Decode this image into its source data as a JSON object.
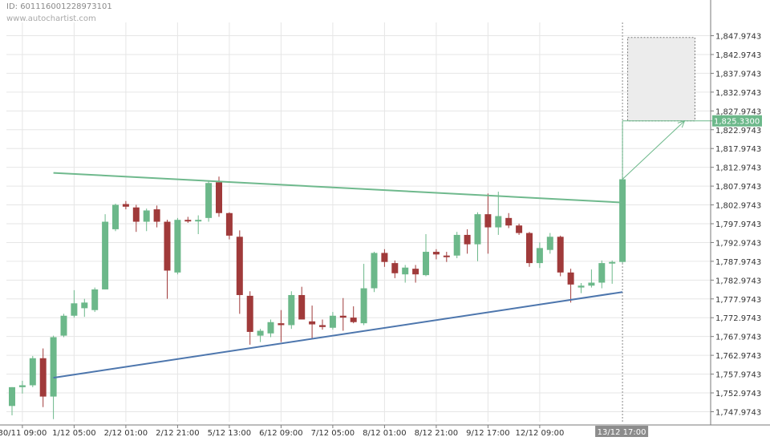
{
  "header": {
    "id_label": "ID: 601116001228973101",
    "watermark": "www.autochartist.com"
  },
  "colors": {
    "bull": "#6cb88a",
    "bear": "#a03a3a",
    "resistance": "#6fb98d",
    "support": "#4d76ad",
    "grid": "#e6e6e6",
    "axis": "#7a7a7a",
    "target_label_bg": "#6cb88a",
    "time_label_bg": "#8c8c8c",
    "forecast_fill": "#ececec"
  },
  "chart_data": {
    "type": "candlestick",
    "pattern": "triangle breakout",
    "y_ticks": [
      "1,747.9743",
      "1,752.9743",
      "1,757.9743",
      "1,762.9743",
      "1,767.9743",
      "1,772.9743",
      "1,777.9743",
      "1,782.9743",
      "1,787.9743",
      "1,792.9743",
      "1,797.9743",
      "1,802.9743",
      "1,807.9743",
      "1,812.9743",
      "1,817.9743",
      "1,822.9743",
      "1,827.9743",
      "1,832.9743",
      "1,837.9743",
      "1,842.9743",
      "1,847.9743"
    ],
    "y_tick_values": [
      1747.9743,
      1752.9743,
      1757.9743,
      1762.9743,
      1767.9743,
      1772.9743,
      1777.9743,
      1782.9743,
      1787.9743,
      1792.9743,
      1797.9743,
      1802.9743,
      1807.9743,
      1812.9743,
      1817.9743,
      1822.9743,
      1827.9743,
      1832.9743,
      1837.9743,
      1842.9743,
      1847.9743
    ],
    "ylim": [
      1745.3,
      1851.5
    ],
    "x_ticks": [
      {
        "bar": 1,
        "label": "30/11 09:00"
      },
      {
        "bar": 6,
        "label": "1/12 05:00"
      },
      {
        "bar": 11,
        "label": "2/12 01:00"
      },
      {
        "bar": 16,
        "label": "2/12 21:00"
      },
      {
        "bar": 21,
        "label": "5/12 13:00"
      },
      {
        "bar": 26,
        "label": "6/12 09:00"
      },
      {
        "bar": 31,
        "label": "7/12 05:00"
      },
      {
        "bar": 36,
        "label": "8/12 01:00"
      },
      {
        "bar": 41,
        "label": "8/12 21:00"
      },
      {
        "bar": 46,
        "label": "9/12 17:00"
      },
      {
        "bar": 51,
        "label": "12/12 09:00"
      }
    ],
    "current_time_label": "13/12 17:00",
    "current_time_bar": 59,
    "target_price_label": "1,825.3300",
    "target_price": 1825.33,
    "forecast_zone": {
      "start_bar": 59.5,
      "end_bar": 66,
      "low": 1825.33,
      "high": 1847.5
    },
    "candles": [
      {
        "o": 1749.5,
        "h": 1754.5,
        "l": 1747.0,
        "c": 1754.5
      },
      {
        "o": 1754.5,
        "h": 1756.2,
        "l": 1752.8,
        "c": 1755.0
      },
      {
        "o": 1755.0,
        "h": 1762.8,
        "l": 1754.5,
        "c": 1762.2
      },
      {
        "o": 1762.2,
        "h": 1764.8,
        "l": 1749.2,
        "c": 1752.0
      },
      {
        "o": 1752.0,
        "h": 1768.2,
        "l": 1746.0,
        "c": 1767.8
      },
      {
        "o": 1768.2,
        "h": 1774.0,
        "l": 1767.8,
        "c": 1773.5
      },
      {
        "o": 1773.5,
        "h": 1780.3,
        "l": 1773.0,
        "c": 1776.8
      },
      {
        "o": 1775.5,
        "h": 1778.0,
        "l": 1773.2,
        "c": 1777.0
      },
      {
        "o": 1775.0,
        "h": 1781.0,
        "l": 1774.5,
        "c": 1780.5
      },
      {
        "o": 1780.5,
        "h": 1800.5,
        "l": 1780.5,
        "c": 1798.5
      },
      {
        "o": 1796.5,
        "h": 1803.3,
        "l": 1796.0,
        "c": 1803.0
      },
      {
        "o": 1803.2,
        "h": 1804.0,
        "l": 1801.8,
        "c": 1802.5
      },
      {
        "o": 1802.3,
        "h": 1803.0,
        "l": 1795.8,
        "c": 1798.5
      },
      {
        "o": 1798.5,
        "h": 1802.0,
        "l": 1796.0,
        "c": 1801.5
      },
      {
        "o": 1801.8,
        "h": 1802.8,
        "l": 1797.0,
        "c": 1798.5
      },
      {
        "o": 1798.5,
        "h": 1799.0,
        "l": 1778.0,
        "c": 1785.5
      },
      {
        "o": 1785.0,
        "h": 1799.5,
        "l": 1784.5,
        "c": 1799.0
      },
      {
        "o": 1799.0,
        "h": 1799.8,
        "l": 1798.2,
        "c": 1798.8
      },
      {
        "o": 1798.8,
        "h": 1800.2,
        "l": 1795.2,
        "c": 1799.0
      },
      {
        "o": 1799.5,
        "h": 1809.5,
        "l": 1798.5,
        "c": 1808.8
      },
      {
        "o": 1809.0,
        "h": 1810.5,
        "l": 1799.8,
        "c": 1800.8
      },
      {
        "o": 1800.8,
        "h": 1801.0,
        "l": 1793.8,
        "c": 1794.8
      },
      {
        "o": 1794.5,
        "h": 1796.2,
        "l": 1774.0,
        "c": 1779.0
      },
      {
        "o": 1778.8,
        "h": 1780.0,
        "l": 1765.8,
        "c": 1769.2
      },
      {
        "o": 1768.2,
        "h": 1770.0,
        "l": 1766.5,
        "c": 1769.5
      },
      {
        "o": 1768.8,
        "h": 1772.5,
        "l": 1767.8,
        "c": 1771.8
      },
      {
        "o": 1771.5,
        "h": 1775.0,
        "l": 1766.5,
        "c": 1771.0
      },
      {
        "o": 1771.0,
        "h": 1780.0,
        "l": 1770.0,
        "c": 1779.0
      },
      {
        "o": 1779.0,
        "h": 1781.2,
        "l": 1772.5,
        "c": 1772.5
      },
      {
        "o": 1772.0,
        "h": 1776.2,
        "l": 1767.2,
        "c": 1771.2
      },
      {
        "o": 1771.0,
        "h": 1772.5,
        "l": 1769.8,
        "c": 1770.5
      },
      {
        "o": 1770.3,
        "h": 1774.5,
        "l": 1769.8,
        "c": 1773.5
      },
      {
        "o": 1773.5,
        "h": 1778.2,
        "l": 1769.5,
        "c": 1773.0
      },
      {
        "o": 1773.0,
        "h": 1776.0,
        "l": 1771.5,
        "c": 1771.8
      },
      {
        "o": 1771.5,
        "h": 1787.3,
        "l": 1771.0,
        "c": 1780.8
      },
      {
        "o": 1780.8,
        "h": 1790.5,
        "l": 1779.8,
        "c": 1790.2
      },
      {
        "o": 1790.2,
        "h": 1791.2,
        "l": 1786.5,
        "c": 1787.8
      },
      {
        "o": 1787.5,
        "h": 1788.2,
        "l": 1783.5,
        "c": 1784.8
      },
      {
        "o": 1784.5,
        "h": 1787.0,
        "l": 1782.3,
        "c": 1786.3
      },
      {
        "o": 1786.0,
        "h": 1787.0,
        "l": 1782.3,
        "c": 1784.5
      },
      {
        "o": 1784.3,
        "h": 1795.2,
        "l": 1784.0,
        "c": 1790.5
      },
      {
        "o": 1790.5,
        "h": 1791.2,
        "l": 1788.5,
        "c": 1789.8
      },
      {
        "o": 1789.5,
        "h": 1790.5,
        "l": 1787.8,
        "c": 1789.3
      },
      {
        "o": 1789.5,
        "h": 1795.8,
        "l": 1788.8,
        "c": 1795.0
      },
      {
        "o": 1795.0,
        "h": 1796.5,
        "l": 1790.0,
        "c": 1792.5
      },
      {
        "o": 1792.5,
        "h": 1801.0,
        "l": 1788.0,
        "c": 1800.5
      },
      {
        "o": 1800.5,
        "h": 1806.0,
        "l": 1790.0,
        "c": 1797.0
      },
      {
        "o": 1797.0,
        "h": 1806.5,
        "l": 1795.0,
        "c": 1800.0
      },
      {
        "o": 1799.5,
        "h": 1800.8,
        "l": 1796.8,
        "c": 1797.5
      },
      {
        "o": 1797.5,
        "h": 1798.0,
        "l": 1795.0,
        "c": 1795.5
      },
      {
        "o": 1795.5,
        "h": 1795.8,
        "l": 1786.5,
        "c": 1787.5
      },
      {
        "o": 1787.5,
        "h": 1793.0,
        "l": 1786.2,
        "c": 1791.5
      },
      {
        "o": 1791.0,
        "h": 1795.5,
        "l": 1790.0,
        "c": 1794.5
      },
      {
        "o": 1794.5,
        "h": 1794.8,
        "l": 1784.0,
        "c": 1785.0
      },
      {
        "o": 1785.0,
        "h": 1786.0,
        "l": 1777.0,
        "c": 1781.8
      },
      {
        "o": 1781.0,
        "h": 1782.2,
        "l": 1779.5,
        "c": 1781.5
      },
      {
        "o": 1781.5,
        "h": 1785.8,
        "l": 1781.0,
        "c": 1782.3
      },
      {
        "o": 1782.3,
        "h": 1788.2,
        "l": 1780.8,
        "c": 1787.5
      },
      {
        "o": 1787.5,
        "h": 1788.2,
        "l": 1782.0,
        "c": 1787.8
      },
      {
        "o": 1787.8,
        "h": 1810.2,
        "l": 1787.5,
        "c": 1809.8
      }
    ],
    "resistance_line": {
      "start": {
        "bar": 4,
        "price": 1811.5
      },
      "end": {
        "bar": 59,
        "price": 1803.6
      }
    },
    "support_line": {
      "start": {
        "bar": 4,
        "price": 1757.0
      },
      "end": {
        "bar": 59,
        "price": 1779.8
      }
    },
    "projection_arrow": {
      "start": {
        "bar": 59,
        "price": 1809.8
      },
      "end": {
        "bar": 65,
        "price": 1825.33
      }
    }
  }
}
